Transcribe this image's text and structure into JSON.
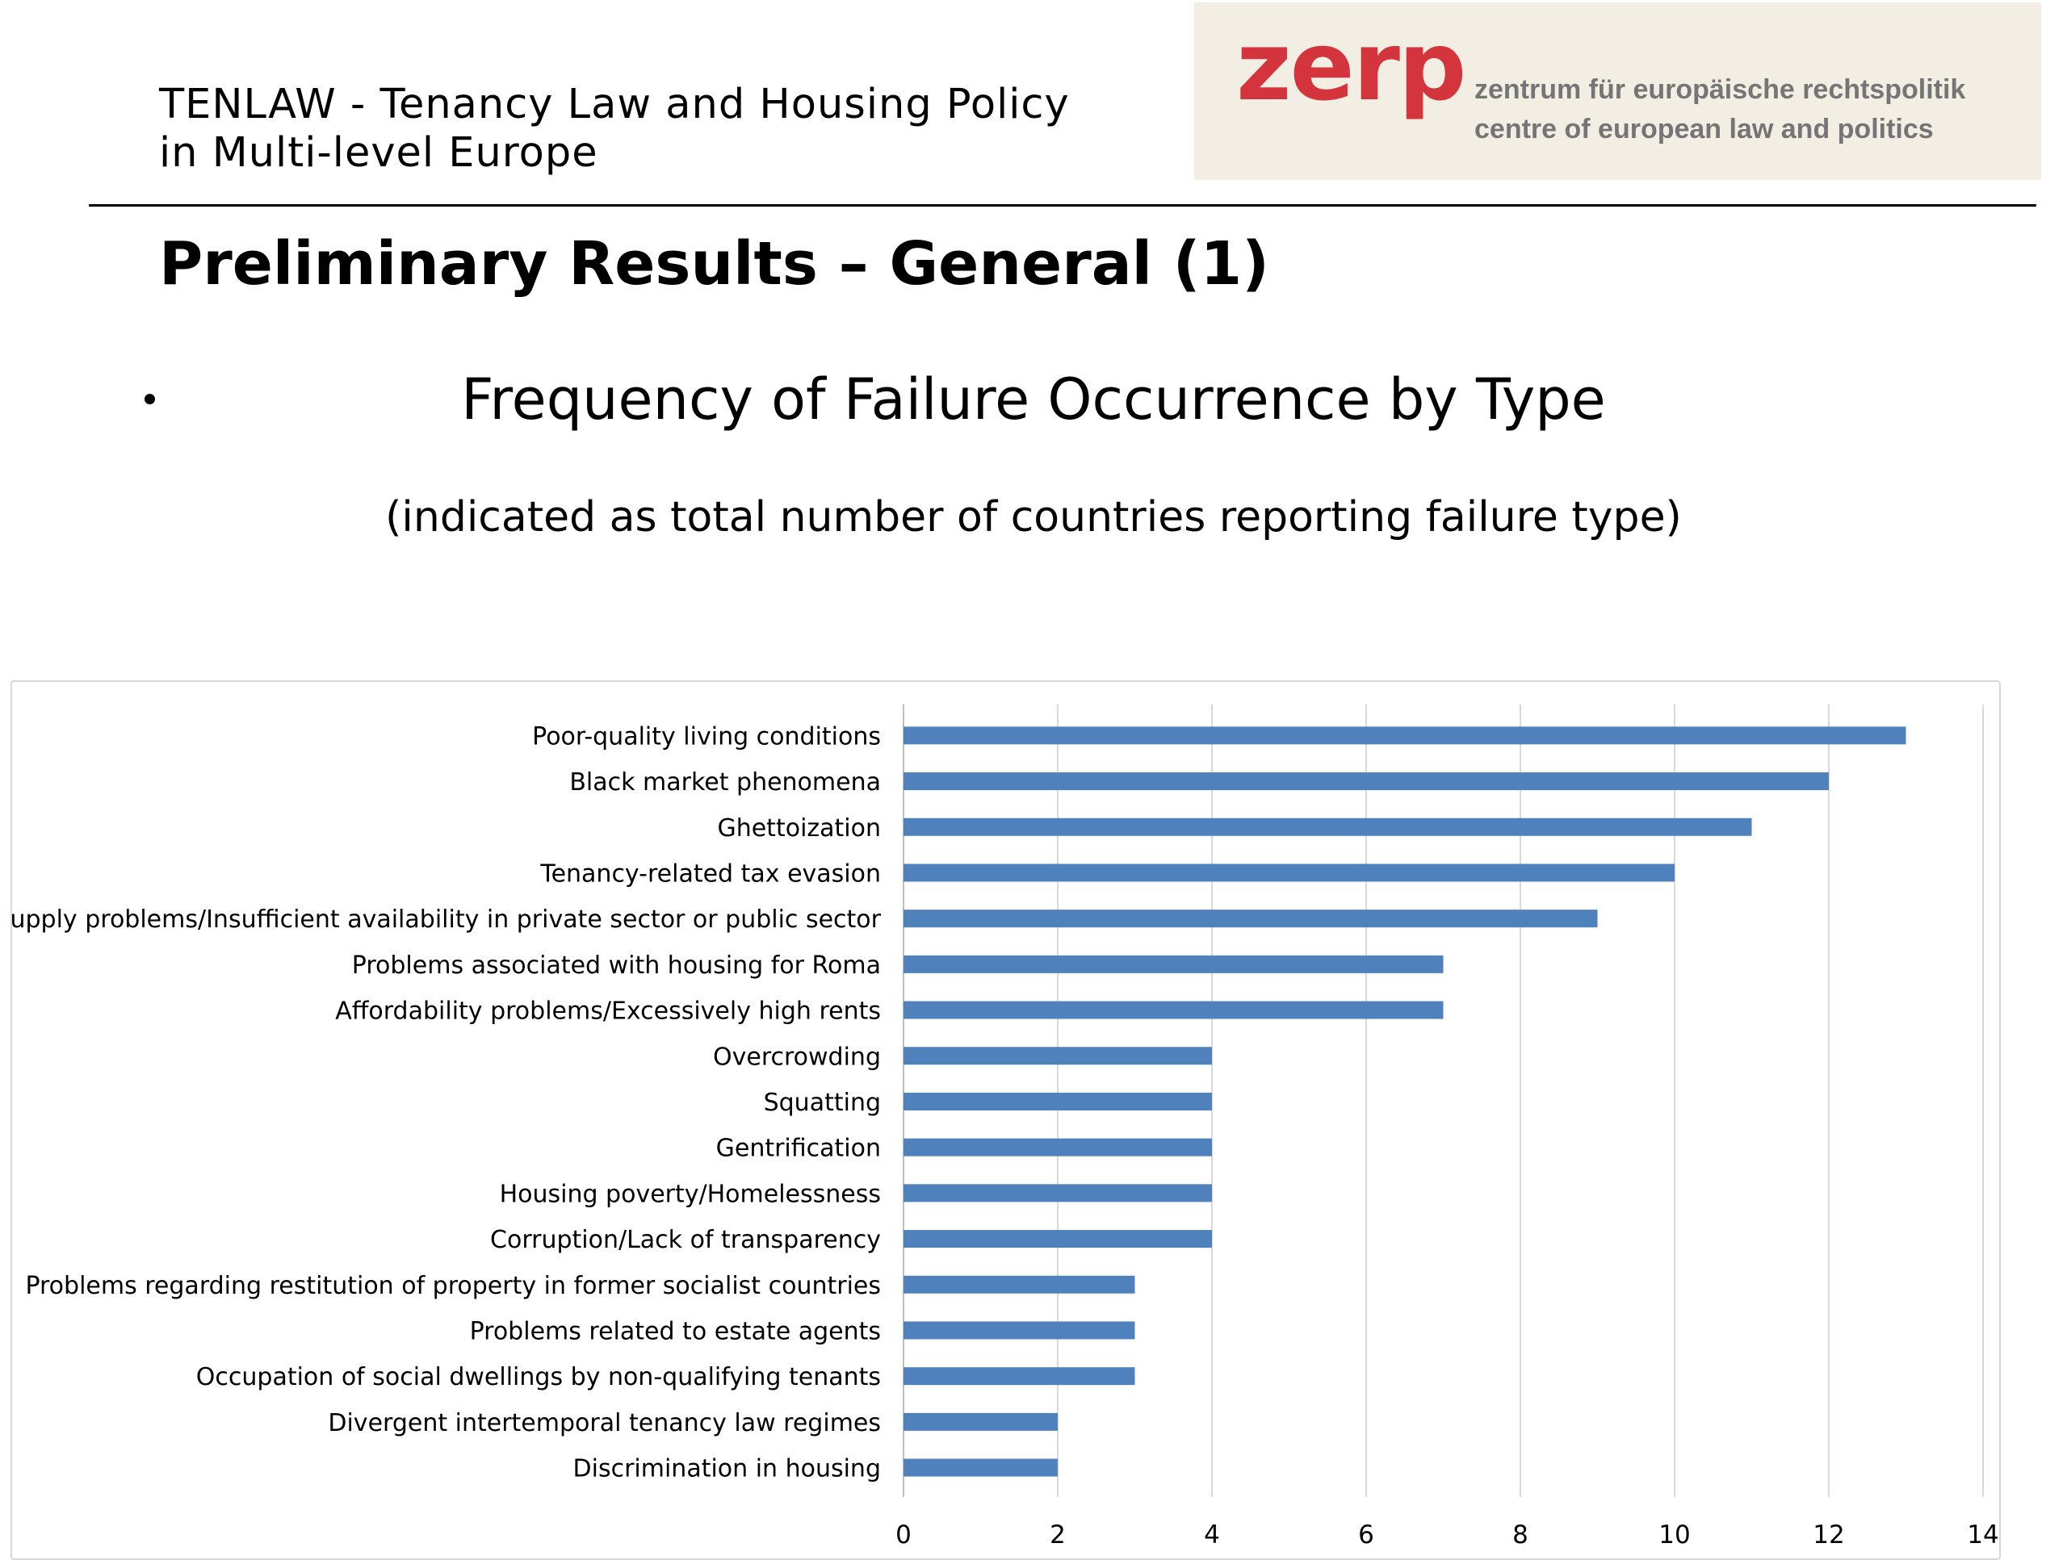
{
  "header": {
    "project_title_line1": "TENLAW - Tenancy Law and Housing Policy",
    "project_title_line2": "in Multi-level Europe",
    "logo": {
      "mark": "zerp",
      "line1": "zentrum für europäische rechtspolitik",
      "line2": "centre of european law and politics",
      "mark_color": "#d4343c",
      "background": "#f2eee4"
    }
  },
  "slide": {
    "title": "Preliminary Results – General (1)"
  },
  "chart_data": {
    "type": "bar",
    "orientation": "horizontal",
    "title": "Frequency of Failure Occurrence by Type",
    "subtitle": "(indicated as total number of countries reporting failure type)",
    "categories": [
      "Poor-quality living conditions",
      "Black market phenomena",
      "Ghettoization",
      "Tenancy-related tax evasion",
      "Supply problems/Insufficient availability in private sector or public sector",
      "Problems associated with housing for Roma",
      "Affordability problems/Excessively high rents",
      "Overcrowding",
      "Squatting",
      "Gentrification",
      "Housing poverty/Homelessness",
      "Corruption/Lack of transparency",
      "Problems regarding restitution of property in former socialist countries",
      "Problems related to estate agents",
      "Occupation of social dwellings by non-qualifying tenants",
      "Divergent intertemporal tenancy law regimes",
      "Discrimination in housing"
    ],
    "values": [
      13,
      12,
      11,
      10,
      9,
      7,
      7,
      4,
      4,
      4,
      4,
      4,
      3,
      3,
      3,
      2,
      2
    ],
    "xlim": [
      0,
      14
    ],
    "xticks": [
      "0",
      "2",
      "4",
      "6",
      "8",
      "10",
      "12",
      "14"
    ],
    "xlabel": "",
    "ylabel": "",
    "grid": "vertical",
    "legend": "none",
    "bar_color": "#4f81bd",
    "grid_color": "#d9d9d9"
  }
}
